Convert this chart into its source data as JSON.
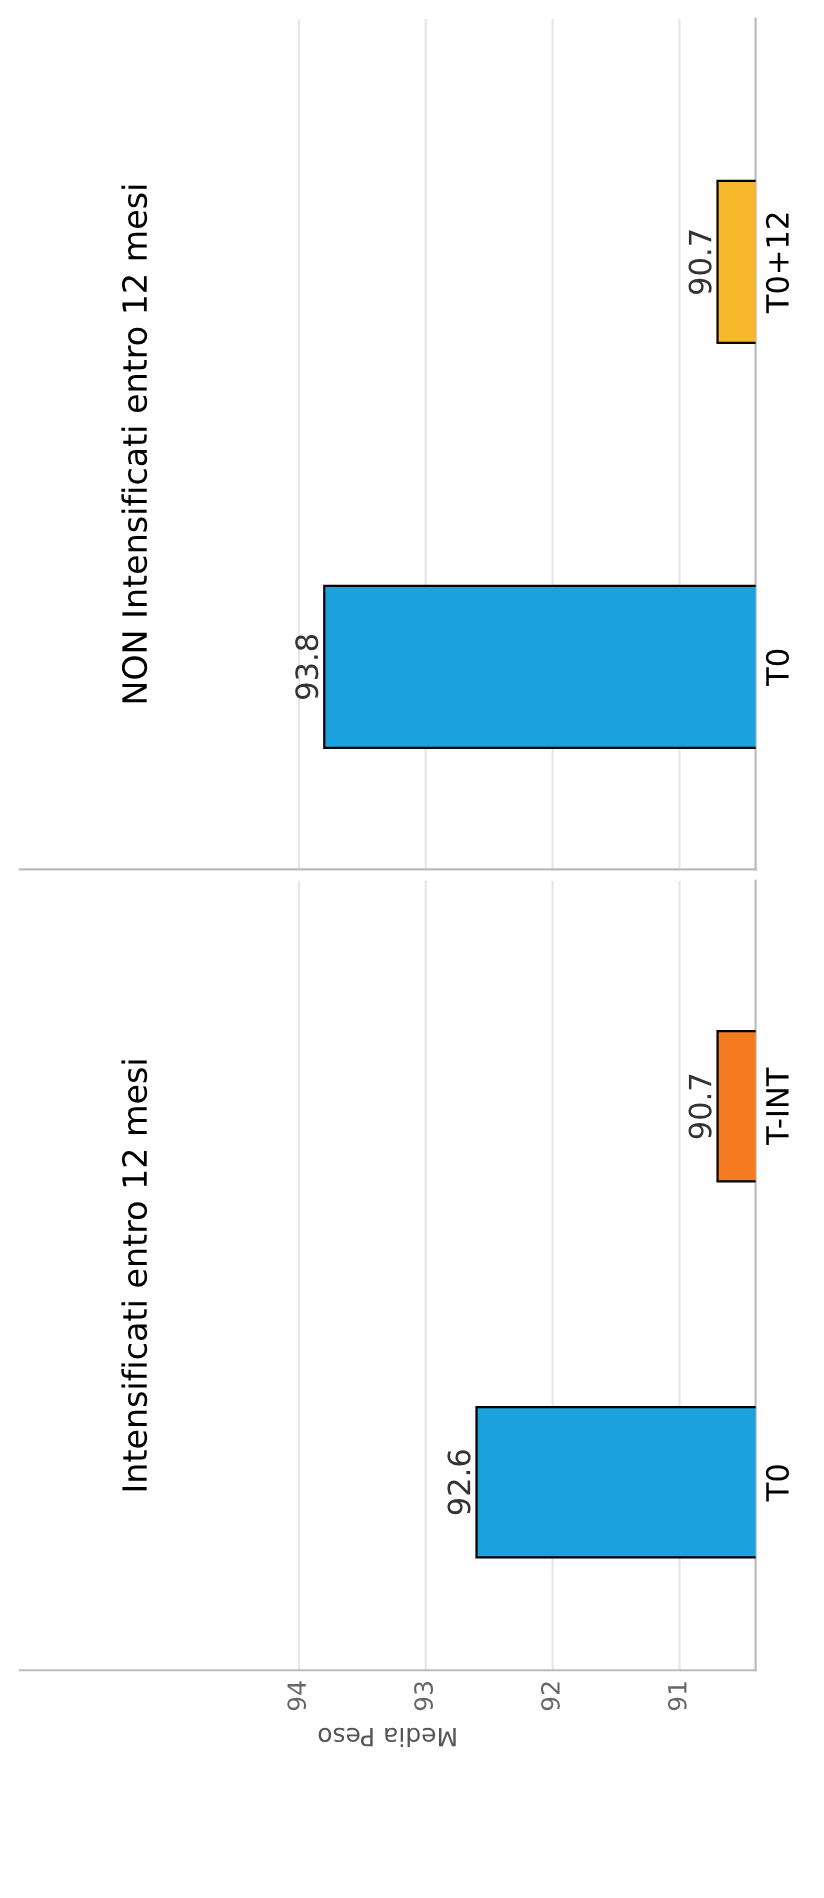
{
  "chart_data": [
    {
      "type": "bar",
      "orientation": "horizontal",
      "title": "NON Intensificati entro 12 mesi",
      "categories": [
        "T0+12",
        "T0"
      ],
      "values": [
        90.7,
        93.8
      ],
      "colors": [
        "#f7b92b",
        "#1ba1dc"
      ],
      "xlim": [
        96.2,
        90.4
      ],
      "xticks": [
        94,
        93,
        92,
        91
      ],
      "grid": "x",
      "data_labels": true,
      "tick_labels": "y"
    },
    {
      "type": "bar",
      "orientation": "horizontal",
      "title": "Intensificati entro 12 mesi",
      "xlabel": "Media Peso",
      "categories": [
        "T-INT",
        "T0"
      ],
      "values": [
        90.7,
        92.6
      ],
      "colors": [
        "#f47b20",
        "#1ba1dc"
      ],
      "xlim": [
        96.2,
        90.4
      ],
      "xticks": [
        94,
        93,
        92,
        91
      ],
      "grid": "x",
      "data_labels": true
    }
  ]
}
